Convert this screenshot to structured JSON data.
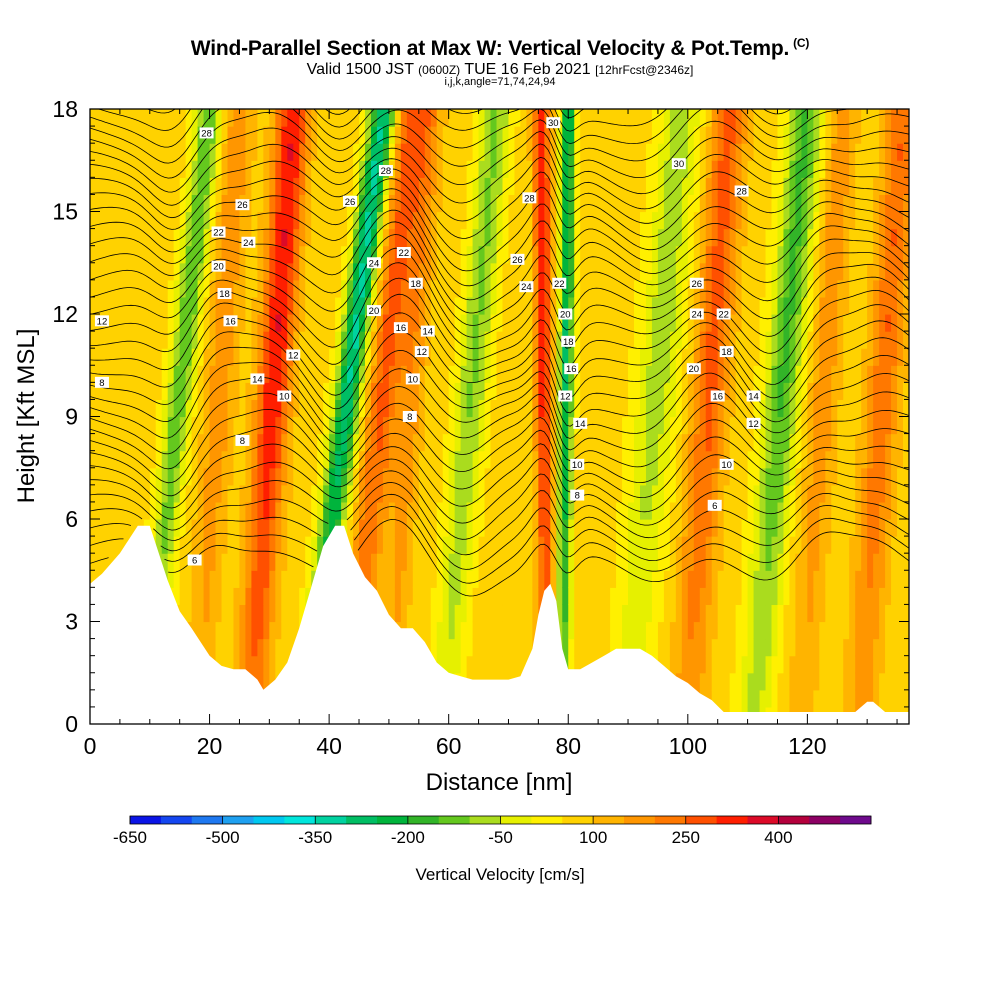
{
  "header": {
    "title": "Wind-Parallel Section at Max W: Vertical Velocity & Pot.Temp.",
    "title_mark": "(C)",
    "subtitle_a": "Valid 1500 JST",
    "subtitle_b": "(0600Z)",
    "subtitle_c": "TUE 16 Feb 2021",
    "subtitle_d": "[12hrFcst@2346z]",
    "meta": "i,j,k,angle=71,74,24,94"
  },
  "chart_data": {
    "type": "heatmap",
    "xlabel": "Distance [nm]",
    "ylabel": "Height [Kft MSL]",
    "xlim": [
      0,
      137
    ],
    "ylim": [
      0,
      18
    ],
    "x_ticks": [
      0,
      20,
      40,
      60,
      80,
      100,
      120
    ],
    "y_ticks": [
      0,
      3,
      6,
      9,
      12,
      15,
      18
    ],
    "colorbar": {
      "title": "Vertical Velocity [cm/s]",
      "ticks": [
        -650,
        -500,
        -350,
        -200,
        -50,
        100,
        250,
        400
      ],
      "levels": [
        -650,
        -600,
        -550,
        -500,
        -450,
        -400,
        -350,
        -300,
        -250,
        -200,
        -150,
        -100,
        -50,
        0,
        50,
        100,
        150,
        200,
        250,
        300,
        350,
        400,
        450
      ],
      "colors": [
        "#0a14e6",
        "#1446f0",
        "#1e78f0",
        "#1ea0f0",
        "#00c8f0",
        "#00e6dc",
        "#00d2a0",
        "#00be64",
        "#00b43c",
        "#32b428",
        "#64c81e",
        "#aadc1e",
        "#e6f000",
        "#fff000",
        "#ffd200",
        "#ffb400",
        "#ff9600",
        "#ff7800",
        "#ff5000",
        "#ff1e00",
        "#dc0a28",
        "#b4003c",
        "#8c0064",
        "#6e0a8c"
      ]
    },
    "terrain_profile": {
      "x": [
        0,
        2,
        5,
        8,
        10,
        13,
        15,
        17,
        20,
        22,
        24,
        26,
        28,
        29,
        31,
        33,
        35,
        37,
        39,
        41,
        42.5,
        44,
        46,
        48,
        50,
        52,
        54,
        56,
        58,
        60,
        62,
        64,
        66,
        68,
        70,
        72,
        74,
        75,
        76,
        77,
        78,
        79,
        80,
        82,
        84,
        86,
        88,
        90,
        92,
        94,
        96,
        98,
        100,
        102,
        104,
        106,
        110,
        115,
        120,
        125,
        128,
        130,
        131,
        133,
        135,
        137
      ],
      "height_kft": [
        4.1,
        4.4,
        5.0,
        5.8,
        5.8,
        4.2,
        3.3,
        2.8,
        2.0,
        1.7,
        1.6,
        1.6,
        1.3,
        1.0,
        1.3,
        1.8,
        2.8,
        4.0,
        5.2,
        5.8,
        5.8,
        5.0,
        4.3,
        3.9,
        3.2,
        2.8,
        2.8,
        2.4,
        1.8,
        1.5,
        1.4,
        1.3,
        1.3,
        1.3,
        1.3,
        1.4,
        2.2,
        3.2,
        3.9,
        4.1,
        3.6,
        2.2,
        1.6,
        1.6,
        1.8,
        2.0,
        2.2,
        2.2,
        2.2,
        2.0,
        1.7,
        1.4,
        1.2,
        0.9,
        0.7,
        0.35,
        0.35,
        0.35,
        0.35,
        0.35,
        0.35,
        0.65,
        0.65,
        0.35,
        0.35,
        0.35
      ]
    },
    "velocity_bands": [
      {
        "x": 14,
        "w": 2.2,
        "tilt": 0.6,
        "value": -220
      },
      {
        "x": 21,
        "w": 2.5,
        "tilt": 0.4,
        "value": 120
      },
      {
        "x": 30,
        "w": 2.8,
        "tilt": 0.4,
        "value": 280
      },
      {
        "x": 42,
        "w": 2.2,
        "tilt": 0.7,
        "value": -380
      },
      {
        "x": 48,
        "w": 2.6,
        "tilt": 0.6,
        "value": 200
      },
      {
        "x": 53,
        "w": 2.2,
        "tilt": 0.4,
        "value": 120
      },
      {
        "x": 63,
        "w": 2.6,
        "tilt": 0.5,
        "value": -180
      },
      {
        "x": 76,
        "w": 1.4,
        "tilt": -0.05,
        "value": 270
      },
      {
        "x": 79.5,
        "w": 1.2,
        "tilt": 0.05,
        "value": -330
      },
      {
        "x": 94,
        "w": 3.5,
        "tilt": 0.5,
        "value": -150
      },
      {
        "x": 103,
        "w": 3.0,
        "tilt": 0.4,
        "value": 200
      },
      {
        "x": 115,
        "w": 3.0,
        "tilt": 0.5,
        "value": -230
      },
      {
        "x": 122,
        "w": 2.5,
        "tilt": 0.4,
        "value": 120
      },
      {
        "x": 132,
        "w": 2.8,
        "tilt": 0.4,
        "value": 180
      }
    ],
    "theta_levels": [
      6,
      8,
      10,
      12,
      14,
      16,
      18,
      20,
      22,
      24,
      26,
      28,
      30
    ],
    "contour_labels": [
      {
        "text": "28",
        "x": 19.5,
        "y": 17.3
      },
      {
        "text": "26",
        "x": 25.5,
        "y": 15.2
      },
      {
        "text": "22",
        "x": 21.5,
        "y": 14.4
      },
      {
        "text": "24",
        "x": 26.5,
        "y": 14.1
      },
      {
        "text": "20",
        "x": 21.5,
        "y": 13.4
      },
      {
        "text": "18",
        "x": 22.5,
        "y": 12.6
      },
      {
        "text": "16",
        "x": 23.5,
        "y": 11.8
      },
      {
        "text": "12",
        "x": 34.0,
        "y": 10.8
      },
      {
        "text": "14",
        "x": 28.0,
        "y": 10.1
      },
      {
        "text": "10",
        "x": 32.5,
        "y": 9.6
      },
      {
        "text": "8",
        "x": 25.5,
        "y": 8.3
      },
      {
        "text": "6",
        "x": 17.5,
        "y": 4.8
      },
      {
        "text": "12",
        "x": 2.0,
        "y": 11.8
      },
      {
        "text": "8",
        "x": 2.0,
        "y": 10.0
      },
      {
        "text": "26",
        "x": 43.5,
        "y": 15.3
      },
      {
        "text": "28",
        "x": 49.5,
        "y": 16.2
      },
      {
        "text": "22",
        "x": 52.5,
        "y": 13.8
      },
      {
        "text": "24",
        "x": 47.5,
        "y": 13.5
      },
      {
        "text": "18",
        "x": 54.5,
        "y": 12.9
      },
      {
        "text": "20",
        "x": 47.5,
        "y": 12.1
      },
      {
        "text": "16",
        "x": 52.0,
        "y": 11.6
      },
      {
        "text": "14",
        "x": 56.5,
        "y": 11.5
      },
      {
        "text": "12",
        "x": 55.5,
        "y": 10.9
      },
      {
        "text": "10",
        "x": 54.0,
        "y": 10.1
      },
      {
        "text": "8",
        "x": 53.5,
        "y": 9.0
      },
      {
        "text": "30",
        "x": 77.5,
        "y": 17.6
      },
      {
        "text": "28",
        "x": 73.5,
        "y": 15.4
      },
      {
        "text": "26",
        "x": 71.5,
        "y": 13.6
      },
      {
        "text": "24",
        "x": 73.0,
        "y": 12.8
      },
      {
        "text": "22",
        "x": 78.5,
        "y": 12.9
      },
      {
        "text": "20",
        "x": 79.5,
        "y": 12.0
      },
      {
        "text": "18",
        "x": 80.0,
        "y": 11.2
      },
      {
        "text": "16",
        "x": 80.5,
        "y": 10.4
      },
      {
        "text": "12",
        "x": 79.5,
        "y": 9.6
      },
      {
        "text": "14",
        "x": 82.0,
        "y": 8.8
      },
      {
        "text": "10",
        "x": 81.5,
        "y": 7.6
      },
      {
        "text": "8",
        "x": 81.5,
        "y": 6.7
      },
      {
        "text": "30",
        "x": 98.5,
        "y": 16.4
      },
      {
        "text": "28",
        "x": 109.0,
        "y": 15.6
      },
      {
        "text": "26",
        "x": 101.5,
        "y": 12.9
      },
      {
        "text": "24",
        "x": 101.5,
        "y": 12.0
      },
      {
        "text": "22",
        "x": 106.0,
        "y": 12.0
      },
      {
        "text": "18",
        "x": 106.5,
        "y": 10.9
      },
      {
        "text": "20",
        "x": 101.0,
        "y": 10.4
      },
      {
        "text": "16",
        "x": 105.0,
        "y": 9.6
      },
      {
        "text": "14",
        "x": 111.0,
        "y": 9.6
      },
      {
        "text": "12",
        "x": 111.0,
        "y": 8.8
      },
      {
        "text": "10",
        "x": 106.5,
        "y": 7.6
      },
      {
        "text": "6",
        "x": 104.5,
        "y": 6.4
      }
    ]
  }
}
